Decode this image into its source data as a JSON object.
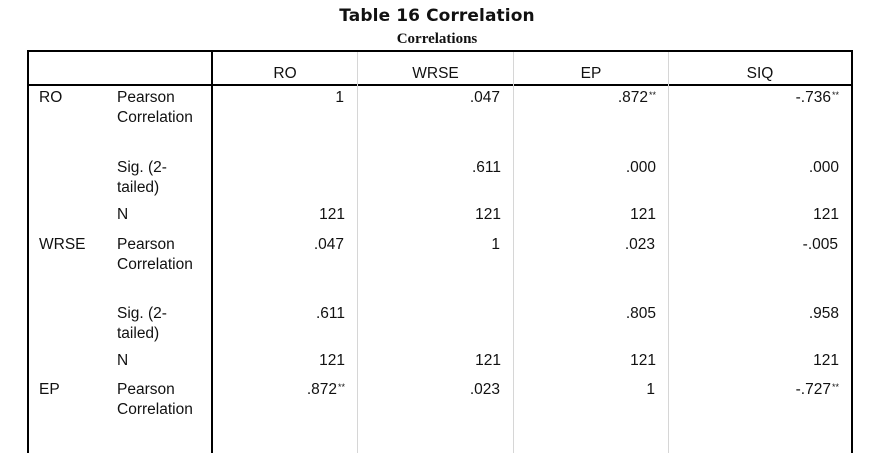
{
  "caption": "Table 16 Correlation",
  "subtitle": "Correlations",
  "columns": [
    "RO",
    "WRSE",
    "EP",
    "SIQ"
  ],
  "rows": [
    {
      "variable": "RO",
      "pearson_label": "Pearson Correlation",
      "pearson": [
        "1",
        ".047",
        ".872",
        "-.736"
      ],
      "pearson_sig": [
        "",
        "",
        "**",
        "**"
      ],
      "sig_label": "Sig. (2-tailed)",
      "sig": [
        "",
        ".611",
        ".000",
        ".000"
      ],
      "n_label": "N",
      "n": [
        "121",
        "121",
        "121",
        "121"
      ]
    },
    {
      "variable": "WRSE",
      "pearson_label": "Pearson Correlation",
      "pearson": [
        ".047",
        "1",
        ".023",
        "-.005"
      ],
      "pearson_sig": [
        "",
        "",
        "",
        ""
      ],
      "sig_label": "Sig. (2-tailed)",
      "sig": [
        ".611",
        "",
        ".805",
        ".958"
      ],
      "n_label": "N",
      "n": [
        "121",
        "121",
        "121",
        "121"
      ]
    },
    {
      "variable": "EP",
      "pearson_label": "Pearson Correlation",
      "pearson": [
        ".872",
        ".023",
        "1",
        "-.727"
      ],
      "pearson_sig": [
        "**",
        "",
        "",
        "**"
      ]
    }
  ]
}
